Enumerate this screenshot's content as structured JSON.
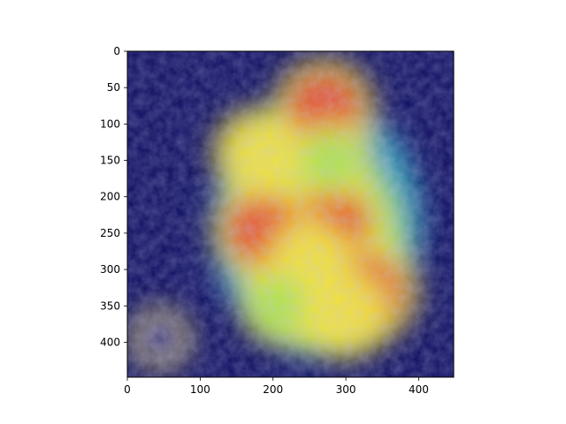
{
  "chart_data": {
    "type": "heatmap",
    "title": "",
    "xlabel": "",
    "ylabel": "",
    "xlim": [
      0,
      448
    ],
    "ylim": [
      448,
      0
    ],
    "x_ticks": [
      0,
      100,
      200,
      300,
      400
    ],
    "y_ticks": [
      0,
      50,
      100,
      150,
      200,
      250,
      300,
      350,
      400
    ],
    "x_tick_labels": [
      "0",
      "100",
      "200",
      "300",
      "400"
    ],
    "y_tick_labels": [
      "0",
      "50",
      "100",
      "150",
      "200",
      "250",
      "300",
      "350",
      "400"
    ],
    "colormap": "jet",
    "overlay": "attention heatmap over photograph",
    "grid": false,
    "colors": {
      "background": "#0b0b5e",
      "low": "#1a1a8c",
      "mid_low": "#2fb3c7",
      "mid": "#a8e34a",
      "mid_high": "#f2e23a",
      "high": "#e8432a"
    },
    "hotspots": [
      {
        "x": 280,
        "y": 240,
        "level": 0.95
      },
      {
        "x": 185,
        "y": 245,
        "level": 0.85
      },
      {
        "x": 330,
        "y": 330,
        "level": 0.9
      },
      {
        "x": 270,
        "y": 80,
        "level": 0.9
      },
      {
        "x": 180,
        "y": 140,
        "level": 0.75
      },
      {
        "x": 250,
        "y": 290,
        "level": 0.7
      },
      {
        "x": 210,
        "y": 350,
        "level": 0.55
      },
      {
        "x": 300,
        "y": 360,
        "level": 0.75
      },
      {
        "x": 280,
        "y": 150,
        "level": 0.55
      },
      {
        "x": 45,
        "y": 395,
        "level": 0.3
      }
    ]
  }
}
